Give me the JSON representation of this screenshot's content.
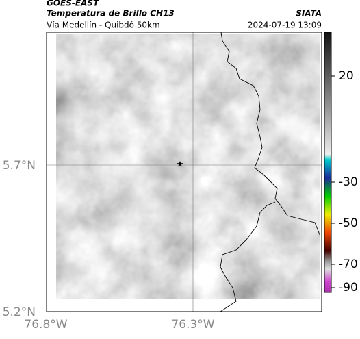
{
  "header": {
    "source": "GOES-EAST",
    "product": "Temperatura de Brillo CH13",
    "agency": "SIATA",
    "route": "Vía Medellín - Quibdó 50km",
    "timestamp": "2024-07-19 13:09"
  },
  "axes": {
    "longitude_labels": [
      "76.8°W",
      "76.3°W"
    ],
    "latitude_labels": [
      "5.7°N",
      "5.2°N"
    ]
  },
  "colorbar": {
    "ticks": [
      20,
      -30,
      -50,
      -70,
      -90
    ]
  }
}
